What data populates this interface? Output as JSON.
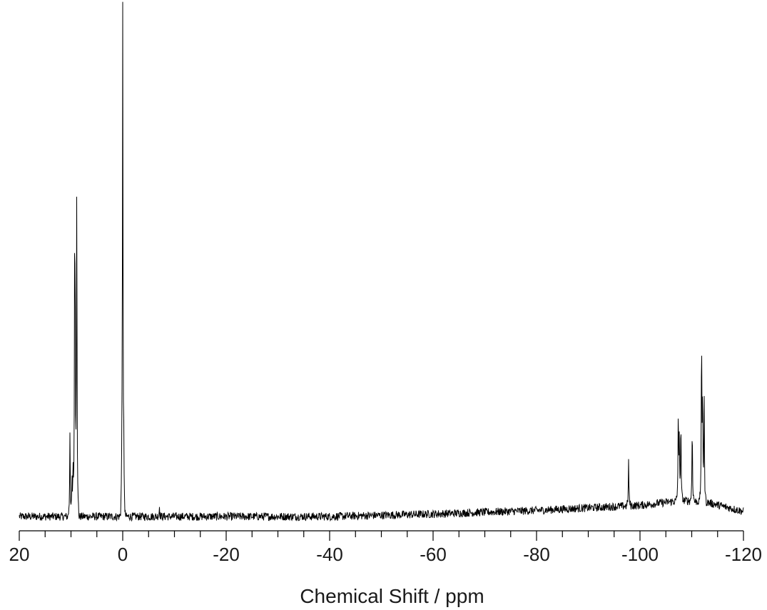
{
  "chart_data": {
    "type": "line",
    "title": "",
    "xlabel": "Chemical Shift / ppm",
    "ylabel": "",
    "x_reversed": true,
    "xlim": [
      20,
      -120
    ],
    "x_major_ticks": [
      20,
      0,
      -20,
      -40,
      -60,
      -80,
      -100,
      -120
    ],
    "x_tick_labels": [
      "20",
      "0",
      "-20",
      "-40",
      "-60",
      "-80",
      "-100",
      "-120"
    ],
    "x_minor_step": 5,
    "y_axis_visible": false,
    "ylim": [
      -0.03,
      1.0
    ],
    "grid": false,
    "line_color": "#000000",
    "baseline": {
      "x": [
        20,
        0,
        -40,
        -60,
        -80,
        -100,
        -105,
        -108,
        -113,
        -120
      ],
      "y": [
        0.0,
        0.0,
        0.0,
        0.005,
        0.012,
        0.022,
        0.028,
        0.032,
        0.028,
        0.01
      ],
      "noise_amplitude": 0.008
    },
    "peaks": [
      {
        "x": 10.2,
        "y": 0.17
      },
      {
        "x": 9.8,
        "y": 0.07
      },
      {
        "x": 9.6,
        "y": 0.08
      },
      {
        "x": 9.3,
        "y": 0.42
      },
      {
        "x": 9.2,
        "y": 0.37
      },
      {
        "x": 8.9,
        "y": 0.51
      },
      {
        "x": 8.85,
        "y": 0.16
      },
      {
        "x": 0.15,
        "y": 0.08
      },
      {
        "x": 0.0,
        "y": 1.0
      },
      {
        "x": -0.2,
        "y": 0.1
      },
      {
        "x": -7.1,
        "y": 0.02
      },
      {
        "x": -97.8,
        "y": 0.09
      },
      {
        "x": -107.4,
        "y": 0.17
      },
      {
        "x": -107.6,
        "y": 0.12
      },
      {
        "x": -107.9,
        "y": 0.15
      },
      {
        "x": -110.1,
        "y": 0.15
      },
      {
        "x": -111.9,
        "y": 0.32
      },
      {
        "x": -112.1,
        "y": 0.2
      },
      {
        "x": -112.4,
        "y": 0.21
      }
    ]
  }
}
